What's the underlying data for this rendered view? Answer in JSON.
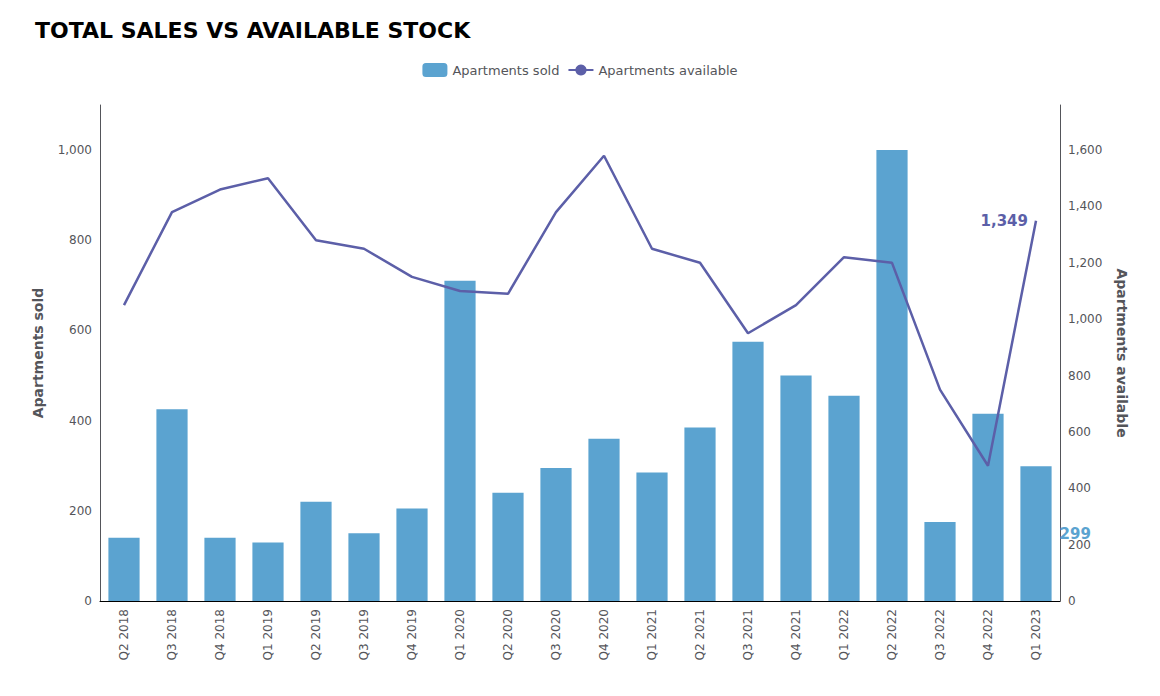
{
  "chart_data": {
    "type": "bar",
    "title": "TOTAL SALES VS AVAILABLE STOCK",
    "categories": [
      "Q2 2018",
      "Q3 2018",
      "Q4 2018",
      "Q1 2019",
      "Q2 2019",
      "Q3 2019",
      "Q4 2019",
      "Q1 2020",
      "Q2 2020",
      "Q3 2020",
      "Q4 2020",
      "Q1 2021",
      "Q2 2021",
      "Q3 2021",
      "Q4 2021",
      "Q1 2022",
      "Q2 2022",
      "Q3 2022",
      "Q4 2022",
      "Q1 2023"
    ],
    "series": [
      {
        "name": "Apartments sold",
        "type": "bar",
        "color": "#5BA3D0",
        "values": [
          140,
          425,
          140,
          130,
          220,
          150,
          205,
          710,
          240,
          295,
          360,
          285,
          385,
          575,
          500,
          455,
          1000,
          175,
          415,
          299
        ]
      },
      {
        "name": "Apartments available",
        "type": "line",
        "axis": "y2",
        "color": "#5C5FA8",
        "values": [
          1050,
          1380,
          1460,
          1500,
          1280,
          1250,
          1150,
          1100,
          1090,
          1380,
          1580,
          1250,
          1200,
          950,
          1050,
          1220,
          1200,
          750,
          480,
          1349
        ]
      }
    ],
    "ylabel": "Apartments sold",
    "y2label": "Apartments available",
    "ylim": [
      0,
      1100
    ],
    "yticks": [
      0,
      200,
      400,
      600,
      800,
      1000
    ],
    "y2lim": [
      0,
      1760
    ],
    "y2ticks": [
      0,
      200,
      400,
      600,
      800,
      1000,
      1200,
      1400,
      1600
    ],
    "annotations": [
      {
        "text": "1,349",
        "series": "Apartments available",
        "category": "Q1 2023",
        "color": "#5C5FA8"
      },
      {
        "text": "299",
        "series": "Apartments sold",
        "category": "Q1 2023",
        "color": "#5BA3D0"
      }
    ],
    "grid": false,
    "legend": "top"
  }
}
